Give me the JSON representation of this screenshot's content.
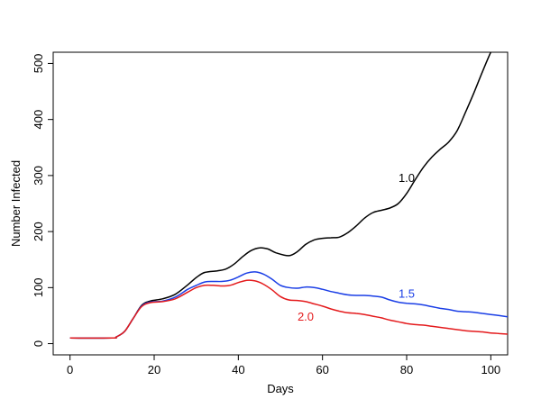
{
  "chart_data": {
    "type": "line",
    "xlabel": "Days",
    "ylabel": "Number Infected",
    "xlim": [
      -4,
      104
    ],
    "ylim": [
      -20,
      520
    ],
    "xticks": [
      0,
      20,
      40,
      60,
      80,
      100
    ],
    "yticks": [
      0,
      100,
      200,
      300,
      400,
      500
    ],
    "grid": false,
    "legend": "none",
    "series": [
      {
        "name": "1.0",
        "color": "#000000",
        "label_at": [
          80,
          297
        ],
        "points": [
          [
            0,
            10
          ],
          [
            10,
            10
          ],
          [
            11,
            12
          ],
          [
            13,
            22
          ],
          [
            15,
            45
          ],
          [
            17,
            68
          ],
          [
            19,
            76
          ],
          [
            22,
            80
          ],
          [
            25,
            88
          ],
          [
            28,
            105
          ],
          [
            30,
            118
          ],
          [
            32,
            127
          ],
          [
            35,
            130
          ],
          [
            37,
            133
          ],
          [
            39,
            142
          ],
          [
            41,
            155
          ],
          [
            43,
            166
          ],
          [
            45,
            171
          ],
          [
            47,
            169
          ],
          [
            49,
            162
          ],
          [
            52,
            157
          ],
          [
            54,
            164
          ],
          [
            56,
            177
          ],
          [
            58,
            185
          ],
          [
            60,
            188
          ],
          [
            62,
            189
          ],
          [
            64,
            190
          ],
          [
            66,
            198
          ],
          [
            68,
            210
          ],
          [
            70,
            224
          ],
          [
            72,
            234
          ],
          [
            74,
            238
          ],
          [
            76,
            242
          ],
          [
            78,
            250
          ],
          [
            80,
            268
          ],
          [
            82,
            292
          ],
          [
            84,
            315
          ],
          [
            86,
            333
          ],
          [
            88,
            347
          ],
          [
            90,
            360
          ],
          [
            92,
            380
          ],
          [
            94,
            413
          ],
          [
            96,
            448
          ],
          [
            98,
            485
          ],
          [
            100,
            520
          ],
          [
            101,
            530
          ]
        ]
      },
      {
        "name": "1.5",
        "color": "#1a3ee6",
        "label_at": [
          80,
          90
        ],
        "points": [
          [
            0,
            10
          ],
          [
            10,
            10
          ],
          [
            11,
            12
          ],
          [
            13,
            22
          ],
          [
            15,
            45
          ],
          [
            17,
            67
          ],
          [
            19,
            74
          ],
          [
            22,
            76
          ],
          [
            25,
            83
          ],
          [
            28,
            97
          ],
          [
            30,
            104
          ],
          [
            32,
            110
          ],
          [
            34,
            111
          ],
          [
            36,
            111
          ],
          [
            38,
            113
          ],
          [
            40,
            119
          ],
          [
            42,
            126
          ],
          [
            44,
            128
          ],
          [
            46,
            124
          ],
          [
            48,
            115
          ],
          [
            50,
            104
          ],
          [
            52,
            100
          ],
          [
            54,
            99
          ],
          [
            56,
            101
          ],
          [
            58,
            100
          ],
          [
            60,
            97
          ],
          [
            62,
            93
          ],
          [
            64,
            90
          ],
          [
            66,
            87
          ],
          [
            68,
            86
          ],
          [
            70,
            86
          ],
          [
            72,
            85
          ],
          [
            74,
            83
          ],
          [
            76,
            78
          ],
          [
            78,
            74
          ],
          [
            80,
            72
          ],
          [
            82,
            71
          ],
          [
            84,
            69
          ],
          [
            86,
            66
          ],
          [
            88,
            63
          ],
          [
            90,
            61
          ],
          [
            92,
            58
          ],
          [
            94,
            57
          ],
          [
            96,
            56
          ],
          [
            98,
            54
          ],
          [
            100,
            52
          ],
          [
            102,
            50
          ],
          [
            104,
            48
          ]
        ]
      },
      {
        "name": "2.0",
        "color": "#e41a1c",
        "label_at": [
          56,
          49
        ],
        "points": [
          [
            0,
            10
          ],
          [
            10,
            10
          ],
          [
            11,
            12
          ],
          [
            13,
            22
          ],
          [
            15,
            45
          ],
          [
            17,
            66
          ],
          [
            19,
            73
          ],
          [
            22,
            75
          ],
          [
            25,
            80
          ],
          [
            28,
            92
          ],
          [
            30,
            100
          ],
          [
            32,
            104
          ],
          [
            34,
            104
          ],
          [
            36,
            103
          ],
          [
            38,
            104
          ],
          [
            40,
            109
          ],
          [
            42,
            113
          ],
          [
            44,
            112
          ],
          [
            46,
            106
          ],
          [
            48,
            96
          ],
          [
            50,
            84
          ],
          [
            52,
            78
          ],
          [
            54,
            77
          ],
          [
            56,
            75
          ],
          [
            58,
            71
          ],
          [
            60,
            67
          ],
          [
            62,
            62
          ],
          [
            64,
            58
          ],
          [
            66,
            55
          ],
          [
            68,
            54
          ],
          [
            70,
            52
          ],
          [
            72,
            49
          ],
          [
            74,
            46
          ],
          [
            76,
            42
          ],
          [
            78,
            39
          ],
          [
            80,
            36
          ],
          [
            82,
            34
          ],
          [
            84,
            33
          ],
          [
            86,
            31
          ],
          [
            88,
            29
          ],
          [
            90,
            27
          ],
          [
            92,
            25
          ],
          [
            94,
            23
          ],
          [
            96,
            22
          ],
          [
            98,
            21
          ],
          [
            100,
            19
          ],
          [
            102,
            18
          ],
          [
            104,
            17
          ]
        ]
      }
    ]
  }
}
